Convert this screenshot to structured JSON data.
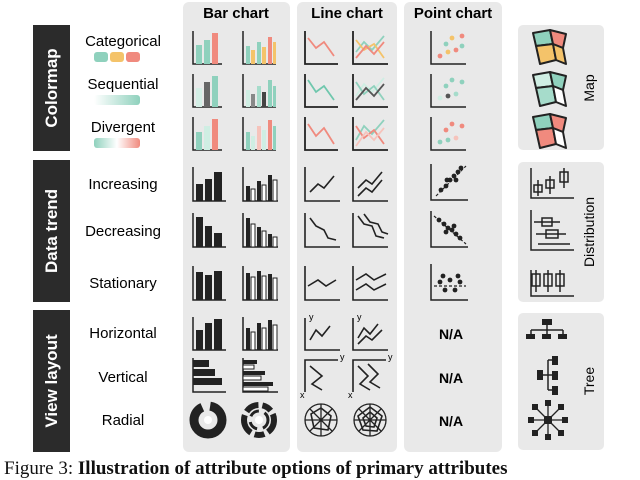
{
  "columns": [
    "Bar chart",
    "Line chart",
    "Point chart"
  ],
  "sections": [
    {
      "title": "Colormap",
      "rows": [
        "Categorical",
        "Sequential",
        "Divergent"
      ],
      "side_label": "Map"
    },
    {
      "title": "Data trend",
      "rows": [
        "Increasing",
        "Decreasing",
        "Stationary"
      ],
      "side_label": "Distribution"
    },
    {
      "title": "View layout",
      "rows": [
        "Horizontal",
        "Vertical",
        "Radial"
      ],
      "side_label": "Tree"
    }
  ],
  "na_label": "N/A",
  "axis_labels": {
    "x": "x",
    "y": "y"
  },
  "caption": {
    "prefix": "Figure 3: ",
    "text": "Illustration of attribute options of primary attributes"
  },
  "colors": {
    "teal": "#8fd1bd",
    "orange": "#f4a261",
    "salmon": "#f08a7e",
    "dark": "#222222",
    "panel": "#e9e9e9",
    "sidebar": "#2b2b2b"
  }
}
